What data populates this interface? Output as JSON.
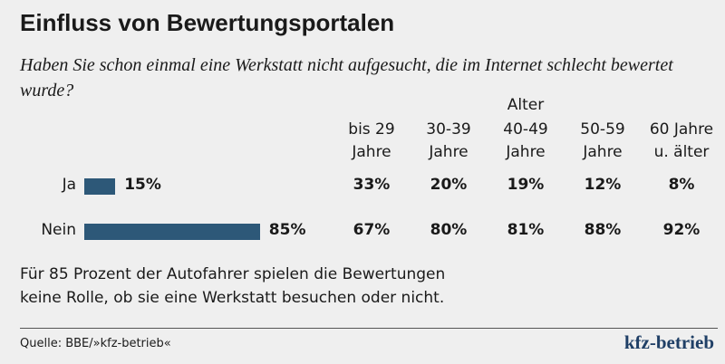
{
  "chart_data": {
    "type": "bar",
    "orientation": "horizontal",
    "title": "Einfluss von Bewertungsportalen",
    "subtitle": "Haben Sie schon einmal eine Werkstatt nicht aufgesucht, die im Internet schlecht bewertet wurde?",
    "categories": [
      "Ja",
      "Nein"
    ],
    "values": [
      15,
      85
    ],
    "value_labels": [
      "15%",
      "85%"
    ],
    "color": "#2d5878",
    "table": {
      "header": "Alter",
      "columns": [
        "bis 29 Jahre",
        "30-39 Jahre",
        "40-49 Jahre",
        "50-59 Jahre",
        "60 Jahre u. älter"
      ],
      "rows": [
        [
          "33%",
          "20%",
          "19%",
          "12%",
          "8%"
        ],
        [
          "67%",
          "80%",
          "81%",
          "88%",
          "92%"
        ]
      ]
    },
    "note": "Für 85 Prozent der Autofahrer spielen die Bewertungen keine Rolle, ob sie eine Werkstatt besuchen oder nicht.",
    "source": "Quelle: BBE/»kfz-betrieb«",
    "brand": "kfz-betrieb"
  }
}
